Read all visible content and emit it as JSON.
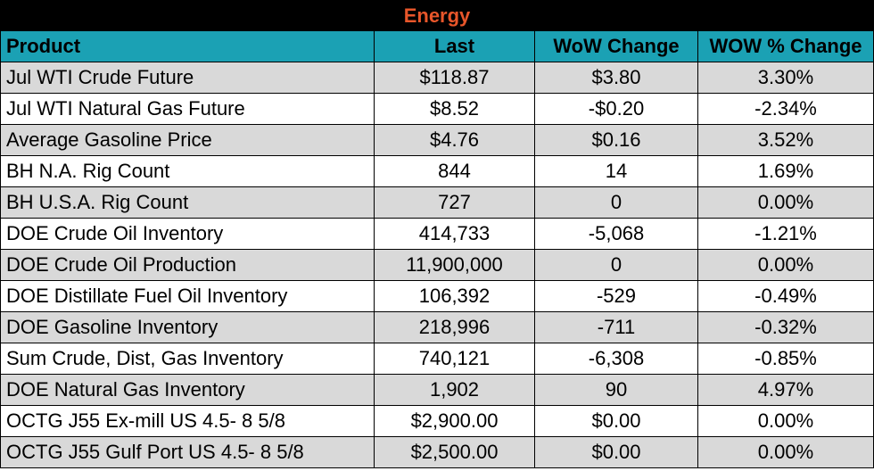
{
  "table": {
    "title": "Energy",
    "headers": [
      "Product",
      "Last",
      "WoW Change",
      "WOW % Change"
    ],
    "rows": [
      [
        "Jul WTI Crude Future",
        "$118.87",
        "$3.80",
        "3.30%"
      ],
      [
        "Jul WTI Natural Gas Future",
        "$8.52",
        "-$0.20",
        "-2.34%"
      ],
      [
        "Average Gasoline Price",
        "$4.76",
        "$0.16",
        "3.52%"
      ],
      [
        "BH N.A. Rig Count",
        "844",
        "14",
        "1.69%"
      ],
      [
        "BH U.S.A. Rig Count",
        "727",
        "0",
        "0.00%"
      ],
      [
        "DOE Crude Oil Inventory",
        "414,733",
        "-5,068",
        "-1.21%"
      ],
      [
        "DOE Crude Oil Production",
        "11,900,000",
        "0",
        "0.00%"
      ],
      [
        "DOE Distillate Fuel Oil Inventory",
        "106,392",
        "-529",
        "-0.49%"
      ],
      [
        "DOE Gasoline Inventory",
        "218,996",
        "-711",
        "-0.32%"
      ],
      [
        "Sum Crude, Dist, Gas Inventory",
        "740,121",
        "-6,308",
        "-0.85%"
      ],
      [
        "DOE Natural Gas Inventory",
        "1,902",
        "90",
        "4.97%"
      ],
      [
        "OCTG J55 Ex-mill US 4.5- 8 5/8",
        "$2,900.00",
        "$0.00",
        "0.00%"
      ],
      [
        "OCTG J55 Gulf Port US 4.5- 8 5/8",
        "$2,500.00",
        "$0.00",
        "0.00%"
      ]
    ]
  },
  "colors": {
    "title_bg": "#000000",
    "title_text": "#e8562a",
    "header_bg": "#1ba1b4",
    "row_shade": "#d9d9d9",
    "row_plain": "#ffffff"
  }
}
